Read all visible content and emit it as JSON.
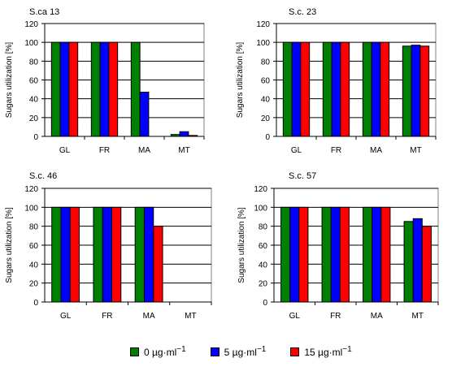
{
  "colors": {
    "0": "#008000",
    "5": "#0000ff",
    "15": "#ff0000"
  },
  "legend": [
    {
      "label": "0  µg·ml",
      "sup": "−1",
      "color": "#008000"
    },
    {
      "label": "5  µg·ml",
      "sup": "−1",
      "color": "#0000ff"
    },
    {
      "label": "15 µg·ml",
      "sup": "−1",
      "color": "#ff0000"
    }
  ],
  "chart_data": [
    {
      "type": "bar",
      "title": "S.ca 13",
      "ylabel": "Sugars utilization [%]",
      "ylim": [
        0,
        120
      ],
      "yticks": [
        0,
        20,
        40,
        60,
        80,
        100,
        120
      ],
      "grid": true,
      "categories": [
        "GL",
        "FR",
        "MA",
        "MT"
      ],
      "series": [
        {
          "name": "0 µg·ml−1",
          "values": [
            100,
            100,
            100,
            2
          ]
        },
        {
          "name": "5 µg·ml−1",
          "values": [
            100,
            100,
            47,
            5
          ]
        },
        {
          "name": "15 µg·ml−1",
          "values": [
            100,
            100,
            0,
            1
          ]
        }
      ]
    },
    {
      "type": "bar",
      "title": "S.c. 23",
      "ylabel": "Sugars utilization [%]",
      "ylim": [
        0,
        120
      ],
      "yticks": [
        0,
        20,
        40,
        60,
        80,
        100,
        120
      ],
      "grid": true,
      "categories": [
        "GL",
        "FR",
        "MA",
        "MT"
      ],
      "series": [
        {
          "name": "0 µg·ml−1",
          "values": [
            100,
            100,
            100,
            96
          ]
        },
        {
          "name": "5 µg·ml−1",
          "values": [
            100,
            100,
            100,
            97
          ]
        },
        {
          "name": "15 µg·ml−1",
          "values": [
            100,
            100,
            100,
            96
          ]
        }
      ]
    },
    {
      "type": "bar",
      "title": "S.c. 46",
      "ylabel": "Sugars utilization [%]",
      "ylim": [
        0,
        120
      ],
      "yticks": [
        0,
        20,
        40,
        60,
        80,
        100,
        120
      ],
      "grid": true,
      "categories": [
        "GL",
        "FR",
        "MA",
        "MT"
      ],
      "series": [
        {
          "name": "0 µg·ml−1",
          "values": [
            100,
            100,
            100,
            0
          ]
        },
        {
          "name": "5 µg·ml−1",
          "values": [
            100,
            100,
            100,
            0
          ]
        },
        {
          "name": "15 µg·ml−1",
          "values": [
            100,
            100,
            80,
            0
          ]
        }
      ]
    },
    {
      "type": "bar",
      "title": "S.c. 57",
      "ylabel": "Sugars utilization [%]",
      "ylim": [
        0,
        120
      ],
      "yticks": [
        0,
        20,
        40,
        60,
        80,
        100,
        120
      ],
      "grid": true,
      "categories": [
        "GL",
        "FR",
        "MA",
        "MT"
      ],
      "series": [
        {
          "name": "0 µg·ml−1",
          "values": [
            100,
            100,
            100,
            85
          ]
        },
        {
          "name": "5 µg·ml−1",
          "values": [
            100,
            100,
            100,
            88
          ]
        },
        {
          "name": "15 µg·ml−1",
          "values": [
            100,
            100,
            100,
            80
          ]
        }
      ]
    }
  ]
}
